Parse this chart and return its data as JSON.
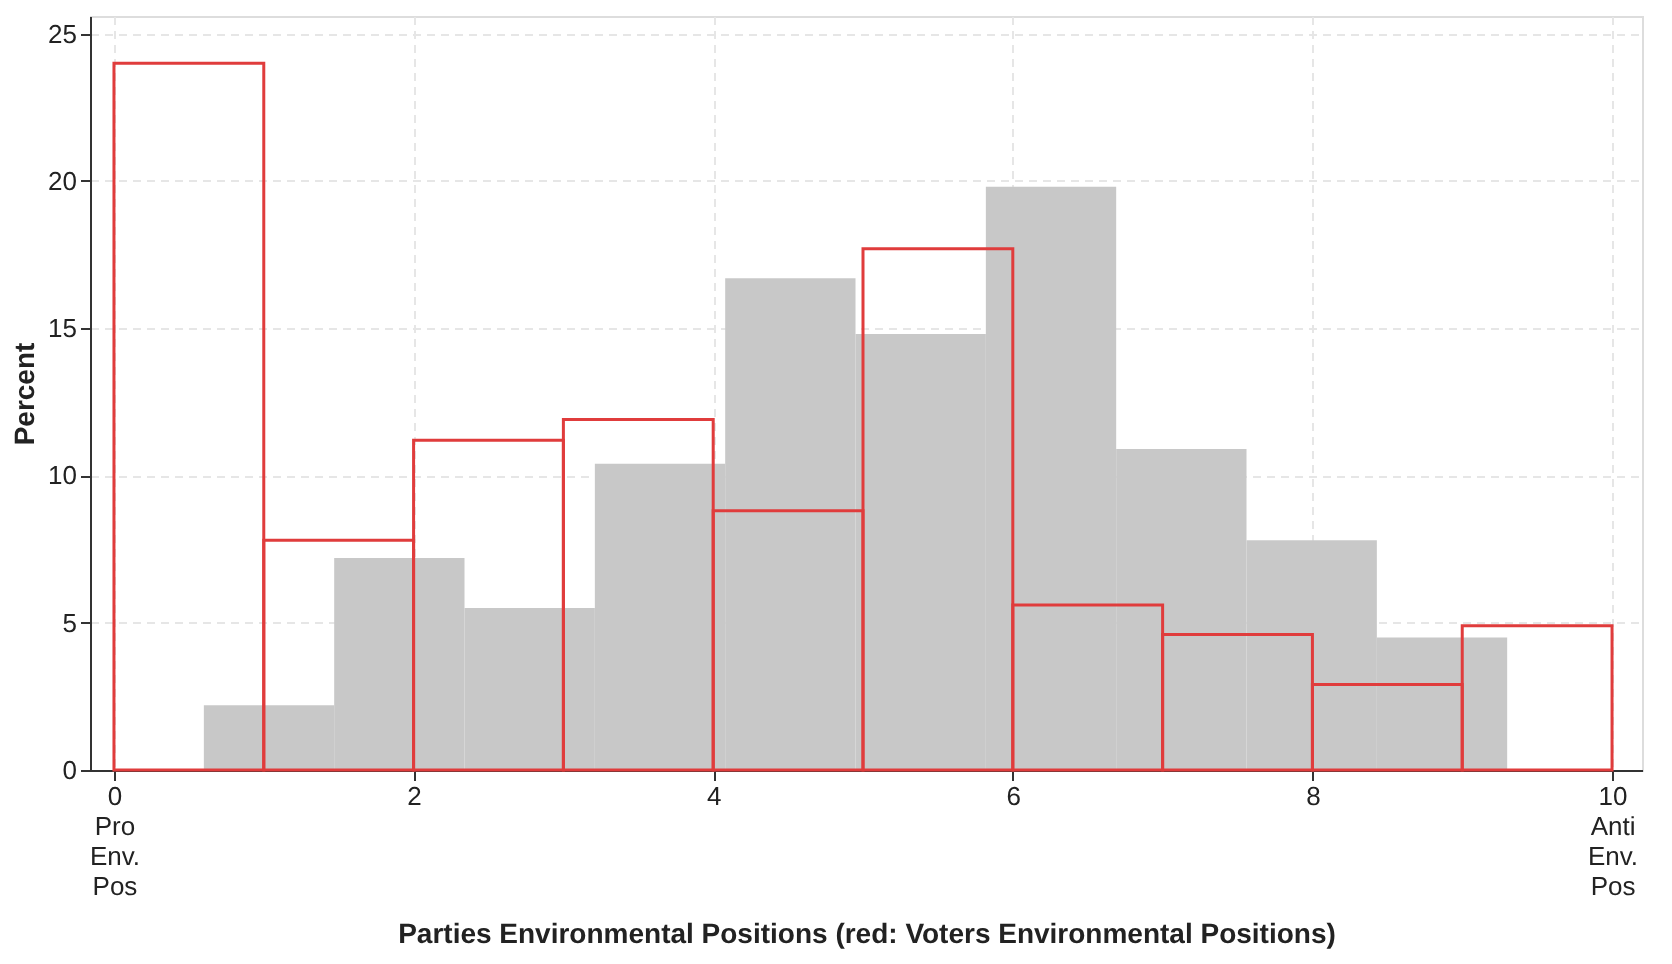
{
  "chart_data": {
    "type": "histogram",
    "xlabel": "Parties Environmental Positions (red: Voters Environmental Positions)",
    "ylabel": "Percent",
    "bins": [
      0,
      1,
      2,
      3,
      4,
      5,
      6,
      7,
      8,
      9,
      10
    ],
    "series": [
      {
        "color": "#c8c8c8",
        "bins": [
          0.6,
          1.47,
          2.34,
          3.21,
          4.08,
          4.95,
          5.82,
          6.69,
          7.56,
          8.43,
          9.3
        ],
        "values": [
          2.2,
          7.2,
          5.5,
          10.4,
          16.7,
          14.8,
          19.8,
          10.9,
          7.8,
          4.5
        ]
      },
      {
        "color": "#e03c3c",
        "values": [
          24,
          7.8,
          11.2,
          11.9,
          8.8,
          17.7,
          5.6,
          4.6,
          2.9,
          4.9
        ]
      }
    ],
    "xlim": [
      -0.16,
      10.2
    ],
    "xticks": [
      {
        "value": 0,
        "label": "0\nPro\nEnv.\nPos"
      },
      2,
      4,
      6,
      8,
      {
        "value": 10,
        "label": "10\nAnti\nEnv.\nPos"
      }
    ],
    "ylim": [
      0,
      25.6
    ],
    "yticks": [
      0,
      5,
      10,
      15,
      20,
      25
    ],
    "grid": true,
    "legend": false
  }
}
